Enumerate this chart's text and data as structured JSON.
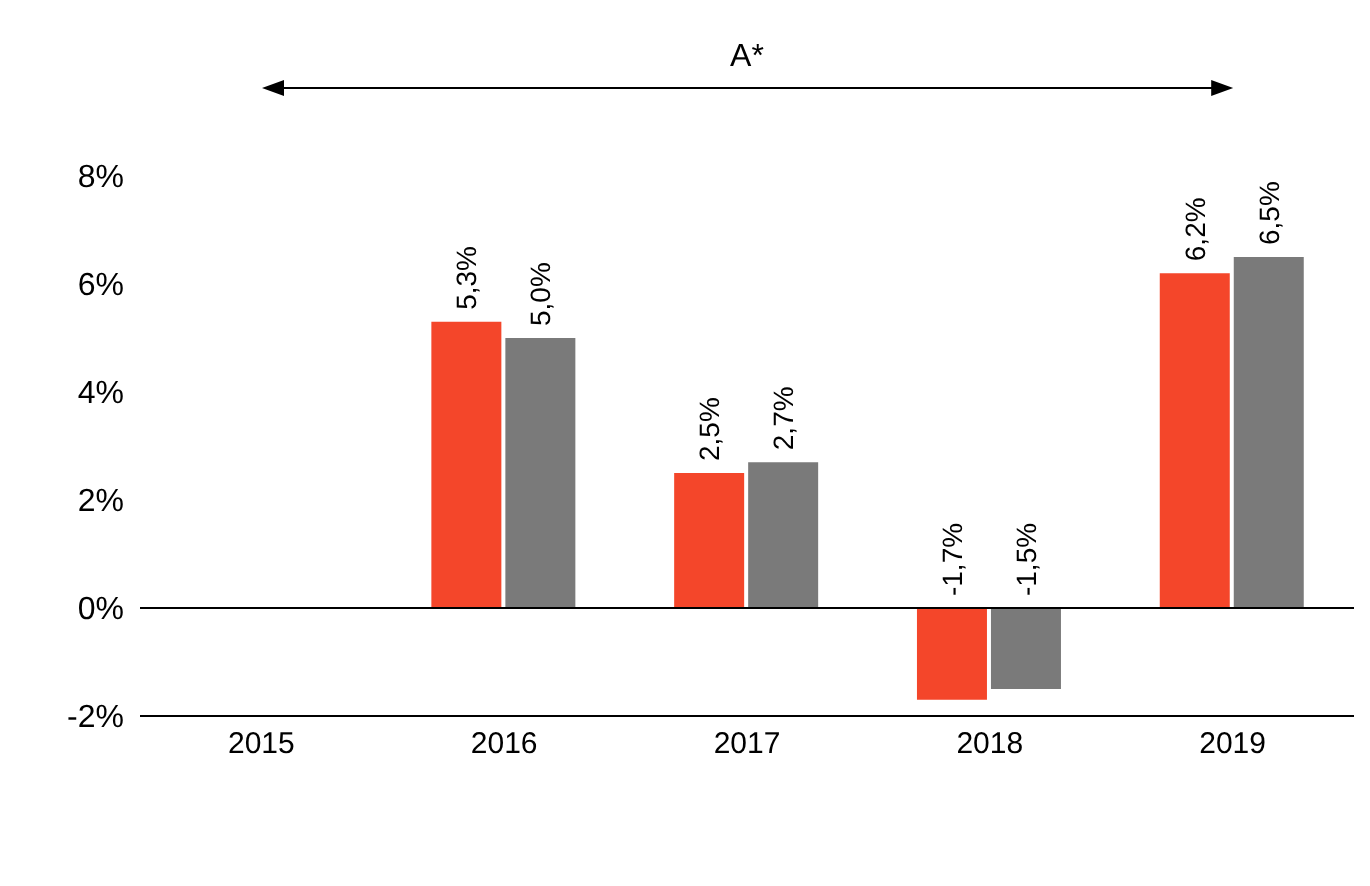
{
  "chart_data": {
    "type": "bar",
    "categories": [
      "2015",
      "2016",
      "2017",
      "2018",
      "2019"
    ],
    "series": [
      {
        "color": "#f4462a",
        "values": [
          null,
          5.3,
          2.5,
          -1.7,
          6.2
        ],
        "value_labels": [
          null,
          "5,3%",
          "2,5%",
          "-1,7%",
          "6,2%"
        ]
      },
      {
        "color": "#7a7a7a",
        "values": [
          null,
          5.0,
          2.7,
          -1.5,
          6.5
        ],
        "value_labels": [
          null,
          "5,0%",
          "2,7%",
          "-1,5%",
          "6,5%"
        ]
      }
    ],
    "ylim": [
      -2,
      8
    ],
    "yticks": [
      {
        "value": -2,
        "label": "-2%"
      },
      {
        "value": 0,
        "label": "0%"
      },
      {
        "value": 2,
        "label": "2%"
      },
      {
        "value": 4,
        "label": "4%"
      },
      {
        "value": 6,
        "label": "6%"
      },
      {
        "value": 8,
        "label": "8%"
      }
    ],
    "grid": false,
    "legend": false,
    "ref_lines": [
      {
        "axis": "y",
        "value": 0,
        "color": "#000000"
      }
    ],
    "annotations": [
      "A*"
    ]
  }
}
